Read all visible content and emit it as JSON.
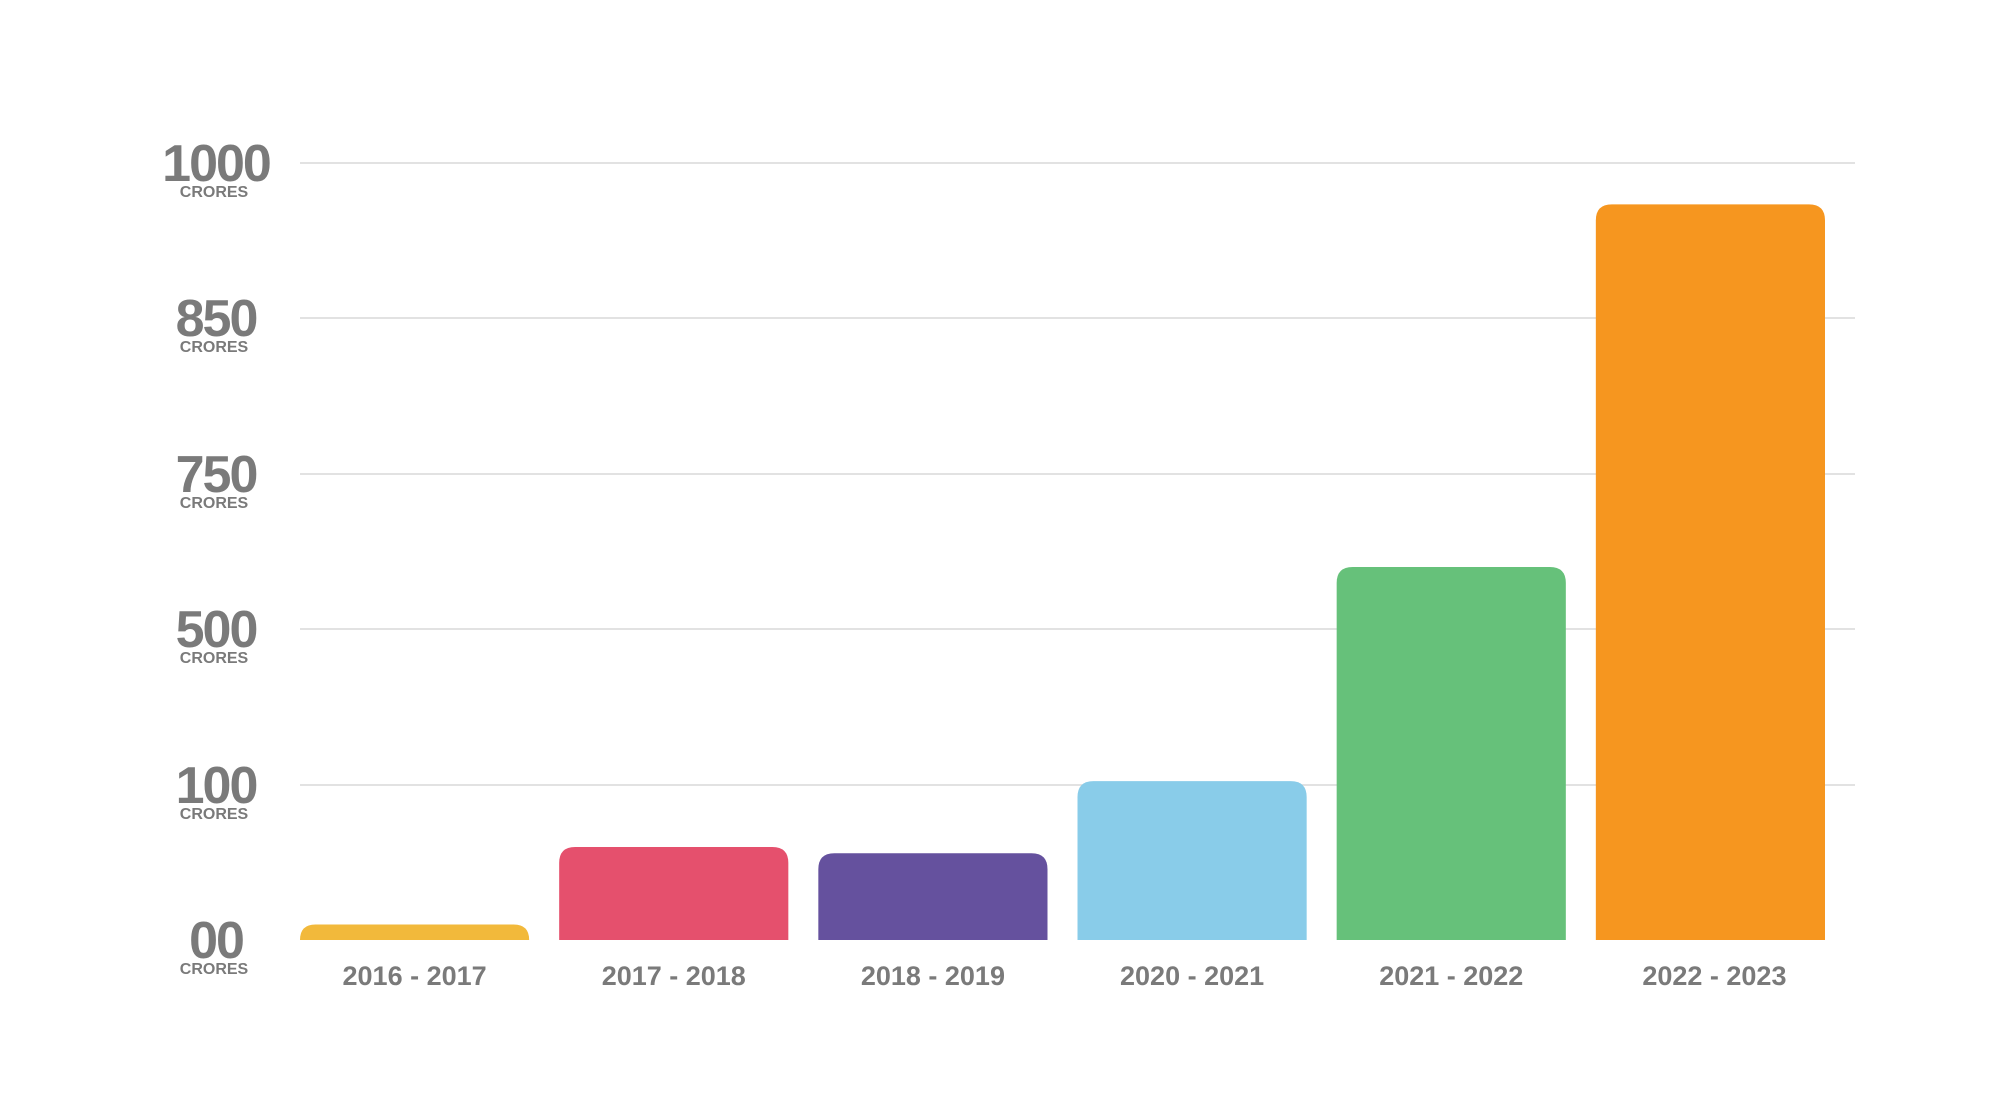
{
  "chart_data": {
    "type": "bar",
    "categories": [
      "2016 - 2017",
      "2017 - 2018",
      "2018 - 2019",
      "2020 - 2021",
      "2021 - 2022",
      "2022 - 2023"
    ],
    "values": [
      10,
      60,
      56,
      110,
      600,
      960
    ],
    "colors": [
      "#f2b93b",
      "#e5506d",
      "#65519e",
      "#89cce9",
      "#66c17a",
      "#f6961f"
    ],
    "y_ticks": [
      {
        "label": "00",
        "unit": "CRORES",
        "value": 0
      },
      {
        "label": "100",
        "unit": "CRORES",
        "value": 100
      },
      {
        "label": "500",
        "unit": "CRORES",
        "value": 500
      },
      {
        "label": "750",
        "unit": "CRORES",
        "value": 750
      },
      {
        "label": "850",
        "unit": "CRORES",
        "value": 850
      },
      {
        "label": "1000",
        "unit": "CRORES",
        "value": 1000
      }
    ],
    "y_scale": "piecewise, tick labels evenly spaced",
    "grid": true,
    "title": "",
    "xlabel": "",
    "ylabel": ""
  }
}
